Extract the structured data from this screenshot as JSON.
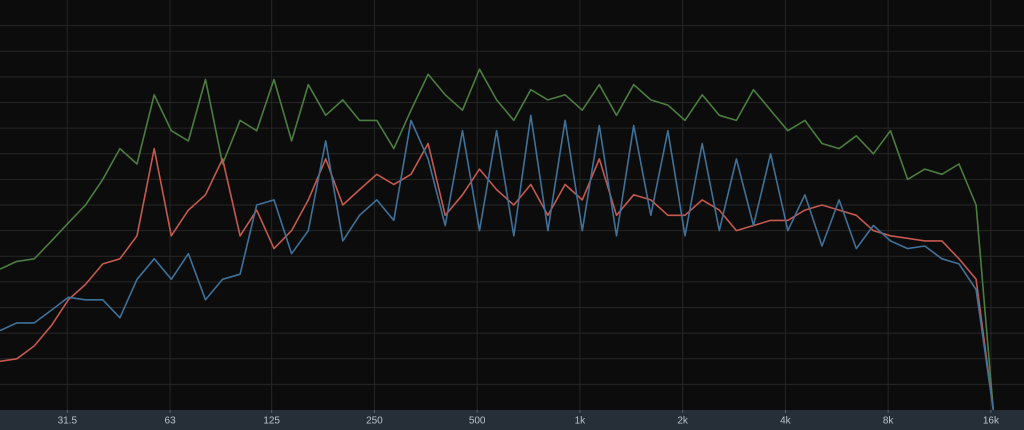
{
  "chart_data": {
    "type": "line",
    "xscale": "log",
    "grid": true,
    "x": [
      20,
      22.4,
      25.2,
      28.3,
      31.7,
      35.6,
      40,
      44.9,
      50.4,
      56.6,
      63.5,
      71.3,
      80,
      89.8,
      101,
      113,
      127,
      143,
      160,
      180,
      202,
      226,
      254,
      285,
      320,
      359,
      403,
      453,
      508,
      570,
      640,
      718,
      806,
      905,
      1016,
      1140,
      1280,
      1437,
      1613,
      1810,
      2032,
      2281,
      2560,
      2874,
      3225,
      3620,
      4064,
      4561,
      5120,
      5747,
      6451,
      7241,
      8127,
      9123,
      10240,
      11494,
      12902,
      14482,
      16255
    ],
    "xlim": [
      20,
      20000
    ],
    "xticks": [
      31.5,
      63,
      125,
      250,
      500,
      {
        "value": 1000,
        "label": "1k"
      },
      {
        "value": 2000,
        "label": "2k"
      },
      {
        "value": 4000,
        "label": "4k"
      },
      {
        "value": 8000,
        "label": "8k"
      },
      {
        "value": 16000,
        "label": "16k"
      }
    ],
    "ylim": [
      0,
      16
    ],
    "yticks": [
      1,
      2,
      3,
      4,
      5,
      6,
      7,
      8,
      9,
      10,
      11,
      12,
      13,
      14,
      15
    ],
    "series": [
      {
        "color": "#4c7d40",
        "values": [
          5.5,
          5.8,
          5.9,
          6.6,
          7.3,
          8.0,
          9.0,
          10.2,
          9.6,
          12.3,
          10.9,
          10.5,
          12.9,
          9.6,
          11.3,
          10.9,
          12.9,
          10.5,
          12.7,
          11.5,
          12.1,
          11.3,
          11.3,
          10.2,
          11.7,
          13.1,
          12.3,
          11.7,
          13.3,
          12.1,
          11.3,
          12.5,
          12.1,
          12.3,
          11.7,
          12.7,
          11.5,
          12.7,
          12.1,
          11.9,
          11.3,
          12.3,
          11.5,
          11.3,
          12.5,
          11.7,
          10.9,
          11.3,
          10.4,
          10.2,
          10.7,
          10.0,
          10.9,
          9.0,
          9.4,
          9.2,
          9.6,
          8.0,
          0
        ]
      },
      {
        "color": "#c4594f",
        "values": [
          1.9,
          2.0,
          2.5,
          3.3,
          4.3,
          4.9,
          5.7,
          5.9,
          6.8,
          10.2,
          6.8,
          7.8,
          8.4,
          9.8,
          6.8,
          7.8,
          6.3,
          7.0,
          8.2,
          9.8,
          8.0,
          8.6,
          9.2,
          8.8,
          9.2,
          10.4,
          7.6,
          8.4,
          9.4,
          8.6,
          8.0,
          8.8,
          7.6,
          8.8,
          8.2,
          9.8,
          7.6,
          8.4,
          8.2,
          7.6,
          7.6,
          8.2,
          7.8,
          7.0,
          7.2,
          7.4,
          7.4,
          7.8,
          8.0,
          7.8,
          7.6,
          7.0,
          6.8,
          6.7,
          6.6,
          6.6,
          5.9,
          5.1,
          0
        ]
      },
      {
        "color": "#3f7199",
        "values": [
          3.1,
          3.4,
          3.4,
          3.9,
          4.4,
          4.3,
          4.3,
          3.6,
          5.1,
          5.9,
          5.1,
          6.1,
          4.3,
          5.1,
          5.3,
          8.0,
          8.2,
          6.1,
          7.0,
          10.5,
          6.6,
          7.6,
          8.2,
          7.4,
          11.3,
          9.8,
          7.2,
          10.9,
          7.0,
          10.9,
          6.8,
          11.5,
          7.0,
          11.3,
          7.0,
          11.1,
          6.8,
          11.1,
          7.6,
          10.9,
          6.8,
          10.4,
          7.0,
          9.8,
          7.2,
          10.0,
          7.0,
          8.4,
          6.4,
          8.2,
          6.3,
          7.2,
          6.6,
          6.3,
          6.4,
          5.9,
          5.7,
          4.7,
          0
        ]
      }
    ]
  }
}
